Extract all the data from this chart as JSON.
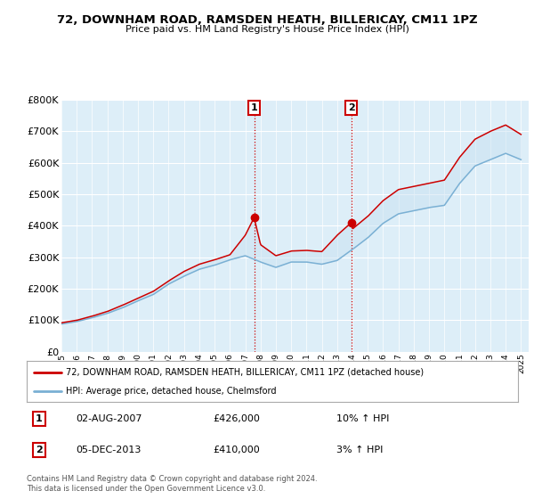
{
  "title": "72, DOWNHAM ROAD, RAMSDEN HEATH, BILLERICAY, CM11 1PZ",
  "subtitle": "Price paid vs. HM Land Registry's House Price Index (HPI)",
  "legend_line1": "72, DOWNHAM ROAD, RAMSDEN HEATH, BILLERICAY, CM11 1PZ (detached house)",
  "legend_line2": "HPI: Average price, detached house, Chelmsford",
  "annotation1_label": "1",
  "annotation1_date": "02-AUG-2007",
  "annotation1_price": "£426,000",
  "annotation1_hpi": "10% ↑ HPI",
  "annotation2_label": "2",
  "annotation2_date": "05-DEC-2013",
  "annotation2_price": "£410,000",
  "annotation2_hpi": "3% ↑ HPI",
  "footer": "Contains HM Land Registry data © Crown copyright and database right 2024.\nThis data is licensed under the Open Government Licence v3.0.",
  "sale1_year": 2007.58,
  "sale1_value": 426000,
  "sale2_year": 2013.92,
  "sale2_value": 410000,
  "color_red": "#cc0000",
  "color_blue": "#7ab0d4",
  "color_blue_fill": "#c5dff0",
  "background_plot": "#ddeef8",
  "ylim_min": 0,
  "ylim_max": 800000,
  "yticks": [
    0,
    100000,
    200000,
    300000,
    400000,
    500000,
    600000,
    700000,
    800000
  ],
  "xlim_min": 1995,
  "xlim_max": 2025.5,
  "hpi_years": [
    1995,
    1996,
    1997,
    1998,
    1999,
    2000,
    2001,
    2002,
    2003,
    2004,
    2005,
    2006,
    2007,
    2008,
    2009,
    2010,
    2011,
    2012,
    2013,
    2014,
    2015,
    2016,
    2017,
    2018,
    2019,
    2020,
    2021,
    2022,
    2023,
    2024,
    2025
  ],
  "hpi_values": [
    88000,
    96000,
    108000,
    122000,
    140000,
    162000,
    182000,
    215000,
    240000,
    262000,
    275000,
    292000,
    305000,
    285000,
    268000,
    285000,
    285000,
    278000,
    290000,
    325000,
    362000,
    408000,
    438000,
    448000,
    458000,
    465000,
    535000,
    590000,
    610000,
    630000,
    610000
  ],
  "prop_years": [
    1995,
    1996,
    1997,
    1998,
    1999,
    2000,
    2001,
    2002,
    2003,
    2004,
    2005,
    2006,
    2007,
    2007.58,
    2008,
    2009,
    2010,
    2011,
    2012,
    2013,
    2013.92,
    2014,
    2015,
    2016,
    2017,
    2018,
    2019,
    2020,
    2021,
    2022,
    2023,
    2024,
    2025
  ],
  "prop_values": [
    92000,
    100000,
    113000,
    128000,
    148000,
    170000,
    192000,
    225000,
    255000,
    278000,
    292000,
    308000,
    370000,
    426000,
    340000,
    305000,
    320000,
    322000,
    318000,
    370000,
    410000,
    390000,
    430000,
    480000,
    515000,
    525000,
    535000,
    545000,
    618000,
    675000,
    700000,
    720000,
    690000
  ]
}
